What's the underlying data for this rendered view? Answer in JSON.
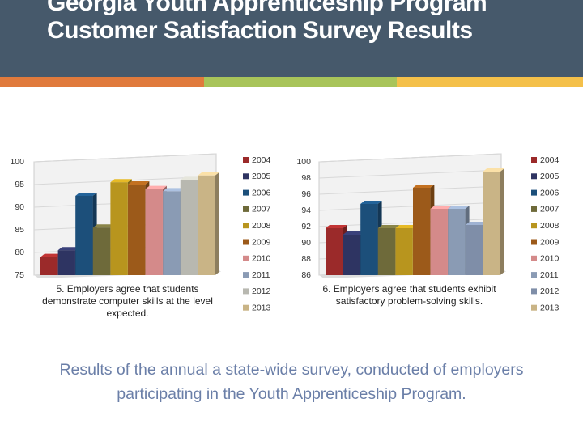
{
  "title": "Georgia Youth Apprenticeship Program Customer Satisfaction Survey Results",
  "caption": "Results of the annual a state-wide survey, conducted of employers participating in the Youth Apprenticeship Program.",
  "chart_data": [
    {
      "type": "bar",
      "title": "5. Employers agree that students demonstrate computer skills at the level expected.",
      "categories": [
        "2004",
        "2005",
        "2006",
        "2007",
        "2008",
        "2009",
        "2010",
        "2011",
        "2012",
        "2013"
      ],
      "values": [
        79,
        80.5,
        92.5,
        85.5,
        95.5,
        95,
        94,
        93.5,
        96,
        97
      ],
      "colors": [
        "#9b2a2a",
        "#2e3462",
        "#1c4f7a",
        "#6e6a3a",
        "#b8951e",
        "#9c5a1a",
        "#d48a8a",
        "#8a9bb4",
        "#b8b8b0",
        "#c9b486"
      ],
      "ylim": [
        75,
        100
      ],
      "yticks": [
        75,
        80,
        85,
        90,
        95,
        100
      ]
    },
    {
      "type": "bar",
      "title": "6. Employers agree that students exhibit satisfactory problem-solving skills.",
      "categories": [
        "2004",
        "2005",
        "2006",
        "2007",
        "2008",
        "2009",
        "2010",
        "2011",
        "2012",
        "2013"
      ],
      "values": [
        91.8,
        91,
        94.8,
        91.8,
        91.8,
        96.8,
        94.2,
        94.2,
        92.2,
        98.8
      ],
      "colors": [
        "#9b2a2a",
        "#2e3462",
        "#1c4f7a",
        "#6e6a3a",
        "#b8951e",
        "#9c5a1a",
        "#d48a8a",
        "#8a9bb4",
        "#7f8ea8",
        "#c9b486"
      ],
      "ylim": [
        86,
        100
      ],
      "yticks": [
        86,
        88,
        90,
        92,
        94,
        96,
        98,
        100
      ]
    }
  ]
}
